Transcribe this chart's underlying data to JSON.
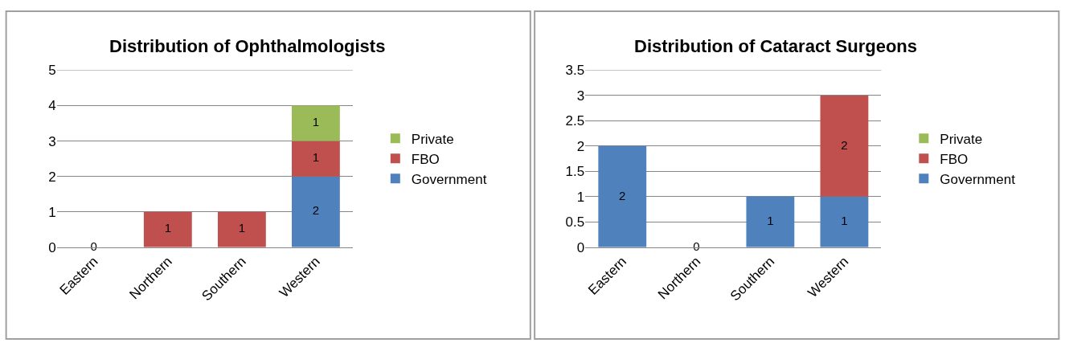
{
  "chart_data": [
    {
      "type": "bar",
      "title": "Distribution of Ophthalmologists",
      "stacked": true,
      "categories": [
        "Eastern",
        "Northern",
        "Southern",
        "Western"
      ],
      "ylim": [
        0,
        5
      ],
      "yticks": [
        0,
        1,
        2,
        3,
        4,
        5
      ],
      "grid": "y",
      "legend": "right",
      "series": [
        {
          "name": "Government",
          "color": "#4f81bd",
          "values": [
            0,
            0,
            0,
            2
          ],
          "value_labels": [
            "0",
            null,
            null,
            "2"
          ]
        },
        {
          "name": "FBO",
          "color": "#c0504d",
          "values": [
            0,
            1,
            1,
            1
          ],
          "value_labels": [
            null,
            "1",
            "1",
            "1"
          ]
        },
        {
          "name": "Private",
          "color": "#9bbb59",
          "values": [
            0,
            0,
            0,
            1
          ],
          "value_labels": [
            null,
            null,
            null,
            "1"
          ]
        }
      ]
    },
    {
      "type": "bar",
      "title": "Distribution of Cataract Surgeons",
      "stacked": true,
      "categories": [
        "Eastern",
        "Northern",
        "Southern",
        "Western"
      ],
      "ylim": [
        0,
        3.5
      ],
      "yticks": [
        0,
        0.5,
        1,
        1.5,
        2,
        2.5,
        3,
        3.5
      ],
      "grid": "y",
      "legend": "right",
      "series": [
        {
          "name": "Government",
          "color": "#4f81bd",
          "values": [
            2,
            0,
            1,
            1
          ],
          "value_labels": [
            "2",
            "0",
            "1",
            "1"
          ]
        },
        {
          "name": "FBO",
          "color": "#c0504d",
          "values": [
            0,
            0,
            0,
            2
          ],
          "value_labels": [
            null,
            null,
            null,
            "2"
          ]
        },
        {
          "name": "Private",
          "color": "#9bbb59",
          "values": [
            0,
            0,
            0,
            0
          ],
          "value_labels": [
            null,
            null,
            null,
            null
          ]
        }
      ]
    }
  ]
}
